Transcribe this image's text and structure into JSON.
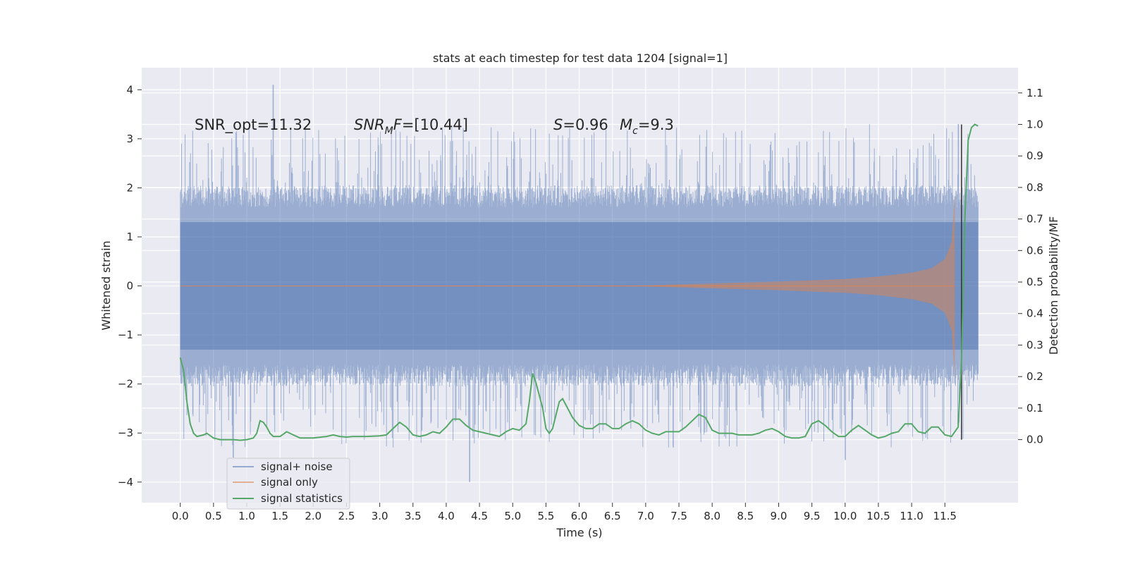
{
  "chart_data": {
    "type": "line",
    "title": "stats at each timestep for test data 1204 [signal=1]",
    "xlabel": "Time (s)",
    "ylabel": "Whitened strain",
    "y2label": "Detection probability/MF",
    "xlim": [
      -0.58,
      12.6
    ],
    "ylim": [
      -4.42,
      4.45
    ],
    "y2lim": [
      -0.2,
      1.18
    ],
    "x_ticks": [
      "0.0",
      "0.5",
      "1.0",
      "1.5",
      "2.0",
      "2.5",
      "3.0",
      "3.5",
      "4.0",
      "4.5",
      "5.0",
      "5.5",
      "6.0",
      "6.5",
      "7.0",
      "7.5",
      "8.0",
      "8.5",
      "9.0",
      "9.5",
      "10.0",
      "10.5",
      "11.0",
      "11.5"
    ],
    "y_ticks": [
      "4",
      "3",
      "2",
      "1",
      "0",
      "−1",
      "−2",
      "−3",
      "−4"
    ],
    "y2_ticks": [
      "1.1",
      "1.0",
      "0.9",
      "0.8",
      "0.7",
      "0.6",
      "0.5",
      "0.4",
      "0.3",
      "0.2",
      "0.1",
      "0.0"
    ],
    "annotations": {
      "snr_opt": "SNR_opt=11.32",
      "snr_mf_sym": "SNR",
      "snr_mf_sub": "M",
      "snr_mf_tail": "F",
      "snr_mf_val": "=[10.44]",
      "s_sym": "S",
      "s_val": "=0.96",
      "mc_sym": "M",
      "mc_sub": "c",
      "mc_val": "=9.3"
    },
    "vline_time": 11.75,
    "signal_end_time": 11.65,
    "series": [
      {
        "name": "signal+ noise",
        "color": "#4c72b0",
        "axis": "left",
        "style": "dense noise, baseline envelope approx ±2.0, peaks up to 4.1 and down to -4.0",
        "peak_points": [
          [
            1.4,
            4.1
          ],
          [
            4.35,
            -4.0
          ],
          [
            0.8,
            -3.5
          ],
          [
            10.0,
            -3.55
          ],
          [
            11.7,
            3.3
          ]
        ]
      },
      {
        "name": "signal only",
        "color": "#dd8452",
        "axis": "left",
        "style": "chirp with growing envelope",
        "envelope": [
          [
            0.0,
            0.0
          ],
          [
            7.0,
            0.01
          ],
          [
            8.0,
            0.05
          ],
          [
            9.0,
            0.09
          ],
          [
            10.0,
            0.14
          ],
          [
            10.5,
            0.19
          ],
          [
            11.0,
            0.27
          ],
          [
            11.3,
            0.36
          ],
          [
            11.5,
            0.55
          ],
          [
            11.6,
            0.9
          ],
          [
            11.65,
            1.9
          ]
        ]
      },
      {
        "name": "signal statistics",
        "color": "#55a868",
        "axis": "right",
        "points": [
          [
            0.0,
            0.26
          ],
          [
            0.05,
            0.22
          ],
          [
            0.1,
            0.12
          ],
          [
            0.15,
            0.05
          ],
          [
            0.2,
            0.02
          ],
          [
            0.25,
            0.01
          ],
          [
            0.35,
            0.015
          ],
          [
            0.4,
            0.02
          ],
          [
            0.5,
            0.005
          ],
          [
            0.6,
            0.0
          ],
          [
            0.7,
            0.0
          ],
          [
            0.8,
            0.0
          ],
          [
            0.9,
            -0.002
          ],
          [
            1.0,
            0.0
          ],
          [
            1.1,
            0.005
          ],
          [
            1.15,
            0.02
          ],
          [
            1.2,
            0.06
          ],
          [
            1.25,
            0.055
          ],
          [
            1.3,
            0.04
          ],
          [
            1.35,
            0.02
          ],
          [
            1.4,
            0.01
          ],
          [
            1.5,
            0.01
          ],
          [
            1.6,
            0.025
          ],
          [
            1.7,
            0.015
          ],
          [
            1.8,
            0.005
          ],
          [
            2.0,
            0.005
          ],
          [
            2.2,
            0.01
          ],
          [
            2.3,
            0.015
          ],
          [
            2.4,
            0.01
          ],
          [
            2.5,
            0.008
          ],
          [
            2.6,
            0.01
          ],
          [
            2.7,
            0.01
          ],
          [
            2.8,
            0.01
          ],
          [
            3.0,
            0.012
          ],
          [
            3.1,
            0.015
          ],
          [
            3.2,
            0.035
          ],
          [
            3.3,
            0.055
          ],
          [
            3.4,
            0.04
          ],
          [
            3.5,
            0.015
          ],
          [
            3.6,
            0.01
          ],
          [
            3.7,
            0.015
          ],
          [
            3.8,
            0.025
          ],
          [
            3.9,
            0.02
          ],
          [
            4.0,
            0.04
          ],
          [
            4.1,
            0.065
          ],
          [
            4.2,
            0.065
          ],
          [
            4.3,
            0.045
          ],
          [
            4.4,
            0.03
          ],
          [
            4.5,
            0.025
          ],
          [
            4.6,
            0.02
          ],
          [
            4.7,
            0.015
          ],
          [
            4.8,
            0.01
          ],
          [
            4.9,
            0.025
          ],
          [
            5.0,
            0.035
          ],
          [
            5.1,
            0.03
          ],
          [
            5.2,
            0.05
          ],
          [
            5.25,
            0.12
          ],
          [
            5.3,
            0.21
          ],
          [
            5.35,
            0.18
          ],
          [
            5.45,
            0.1
          ],
          [
            5.5,
            0.035
          ],
          [
            5.55,
            0.02
          ],
          [
            5.6,
            0.035
          ],
          [
            5.7,
            0.12
          ],
          [
            5.75,
            0.13
          ],
          [
            5.8,
            0.11
          ],
          [
            5.9,
            0.07
          ],
          [
            6.0,
            0.045
          ],
          [
            6.1,
            0.035
          ],
          [
            6.2,
            0.035
          ],
          [
            6.3,
            0.05
          ],
          [
            6.4,
            0.05
          ],
          [
            6.5,
            0.035
          ],
          [
            6.6,
            0.035
          ],
          [
            6.7,
            0.05
          ],
          [
            6.8,
            0.06
          ],
          [
            6.9,
            0.05
          ],
          [
            7.0,
            0.03
          ],
          [
            7.1,
            0.02
          ],
          [
            7.2,
            0.015
          ],
          [
            7.3,
            0.025
          ],
          [
            7.4,
            0.025
          ],
          [
            7.5,
            0.025
          ],
          [
            7.6,
            0.04
          ],
          [
            7.7,
            0.06
          ],
          [
            7.8,
            0.08
          ],
          [
            7.9,
            0.07
          ],
          [
            8.0,
            0.03
          ],
          [
            8.1,
            0.02
          ],
          [
            8.2,
            0.02
          ],
          [
            8.3,
            0.02
          ],
          [
            8.4,
            0.015
          ],
          [
            8.5,
            0.015
          ],
          [
            8.6,
            0.015
          ],
          [
            8.7,
            0.02
          ],
          [
            8.8,
            0.03
          ],
          [
            8.9,
            0.035
          ],
          [
            9.0,
            0.025
          ],
          [
            9.1,
            0.01
          ],
          [
            9.2,
            0.005
          ],
          [
            9.3,
            0.005
          ],
          [
            9.4,
            0.01
          ],
          [
            9.5,
            0.05
          ],
          [
            9.6,
            0.06
          ],
          [
            9.7,
            0.045
          ],
          [
            9.8,
            0.025
          ],
          [
            9.9,
            0.01
          ],
          [
            10.0,
            0.01
          ],
          [
            10.1,
            0.03
          ],
          [
            10.2,
            0.045
          ],
          [
            10.3,
            0.03
          ],
          [
            10.4,
            0.015
          ],
          [
            10.5,
            0.005
          ],
          [
            10.6,
            0.01
          ],
          [
            10.7,
            0.02
          ],
          [
            10.8,
            0.025
          ],
          [
            10.9,
            0.05
          ],
          [
            11.0,
            0.05
          ],
          [
            11.1,
            0.025
          ],
          [
            11.2,
            0.02
          ],
          [
            11.3,
            0.04
          ],
          [
            11.4,
            0.04
          ],
          [
            11.5,
            0.015
          ],
          [
            11.6,
            0.01
          ],
          [
            11.7,
            0.04
          ],
          [
            11.75,
            0.25
          ],
          [
            11.8,
            0.7
          ],
          [
            11.85,
            0.95
          ],
          [
            11.9,
            0.99
          ],
          [
            11.95,
            1.0
          ],
          [
            12.0,
            0.995
          ]
        ]
      }
    ],
    "legend": {
      "position": "lower-left",
      "entries": [
        {
          "label": "signal+ noise",
          "color": "#4c72b0"
        },
        {
          "label": "signal only",
          "color": "#dd8452"
        },
        {
          "label": "signal statistics",
          "color": "#55a868"
        }
      ]
    },
    "background": "#eaeaf2",
    "grid": "on, white"
  }
}
